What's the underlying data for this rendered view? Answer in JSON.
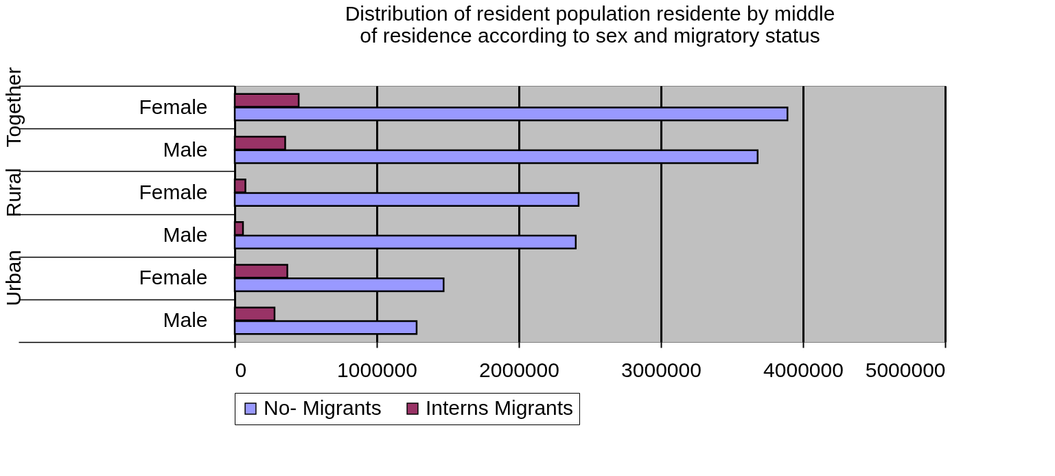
{
  "chart_data": {
    "type": "bar",
    "orientation": "horizontal",
    "title": [
      "Distribution of resident population residente by middle",
      "of residence according to sex and migratory  status"
    ],
    "categories": [
      "Female",
      "Male",
      "Female",
      "Male",
      "Female",
      "Male"
    ],
    "annotations": [
      "Together",
      "Rural",
      "Urban"
    ],
    "series": [
      {
        "name": "No- Migrants",
        "color": "#9999ff",
        "values": [
          3890000,
          3680000,
          2420000,
          2400000,
          1470000,
          1280000
        ]
      },
      {
        "name": "Interns Migrants",
        "color": "#993366",
        "values": [
          450000,
          355000,
          75000,
          58000,
          370000,
          280000
        ]
      }
    ],
    "xlim": [
      0,
      5000000
    ],
    "xticks": [
      0,
      1000000,
      2000000,
      3000000,
      4000000,
      5000000
    ],
    "grid": "x",
    "legend": "bottom"
  }
}
